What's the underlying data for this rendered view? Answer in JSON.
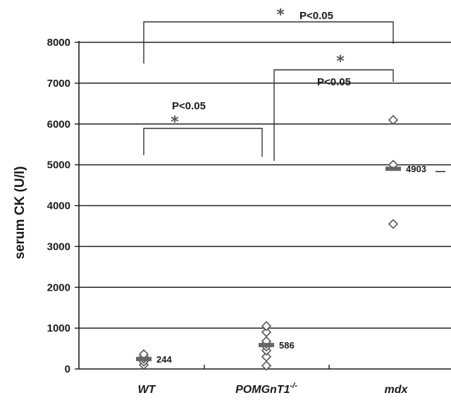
{
  "chart_data": {
    "type": "scatter",
    "ylabel": "serum CK (U/l)",
    "ylim": [
      0,
      8000
    ],
    "yticks": [
      0,
      1000,
      2000,
      3000,
      4000,
      5000,
      6000,
      7000,
      8000
    ],
    "categories": [
      "WT",
      "POMGnT1-/-",
      "mdx"
    ],
    "category_display": [
      {
        "base": "WT",
        "sup": ""
      },
      {
        "base": "POMGnT1",
        "sup": "-/-"
      },
      {
        "base": "mdx",
        "sup": ""
      }
    ],
    "grid": true,
    "series": [
      {
        "values": [
          [
            0,
            100
          ],
          [
            0,
            180
          ],
          [
            0,
            250
          ],
          [
            0,
            300
          ],
          [
            0,
            360
          ]
        ],
        "mean": 244,
        "mean_label": "244"
      },
      {
        "values": [
          [
            1,
            80
          ],
          [
            1,
            300
          ],
          [
            1,
            450
          ],
          [
            1,
            550
          ],
          [
            1,
            620
          ],
          [
            1,
            680
          ],
          [
            1,
            900
          ],
          [
            1,
            1050
          ]
        ],
        "mean": 586,
        "mean_label": "586"
      },
      {
        "values": [
          [
            2,
            3550
          ],
          [
            2,
            5000
          ],
          [
            2,
            6100
          ]
        ],
        "mean": 4903,
        "mean_label": "4903"
      }
    ],
    "annotations": [
      {
        "from": 0,
        "to": 1,
        "text": "P<0.05",
        "star": "*"
      },
      {
        "from": 1,
        "to": 2,
        "text": "P<0.05",
        "star": "*"
      },
      {
        "from": 0,
        "to": 2,
        "text": "P<0.05",
        "star": "*"
      }
    ]
  },
  "colors": {
    "axis": "#1a1a1a",
    "grid": "#222222",
    "marker": "#555555",
    "marker_fill": "#ffffff",
    "mean_bar": "#666666",
    "bracket": "#333333"
  }
}
